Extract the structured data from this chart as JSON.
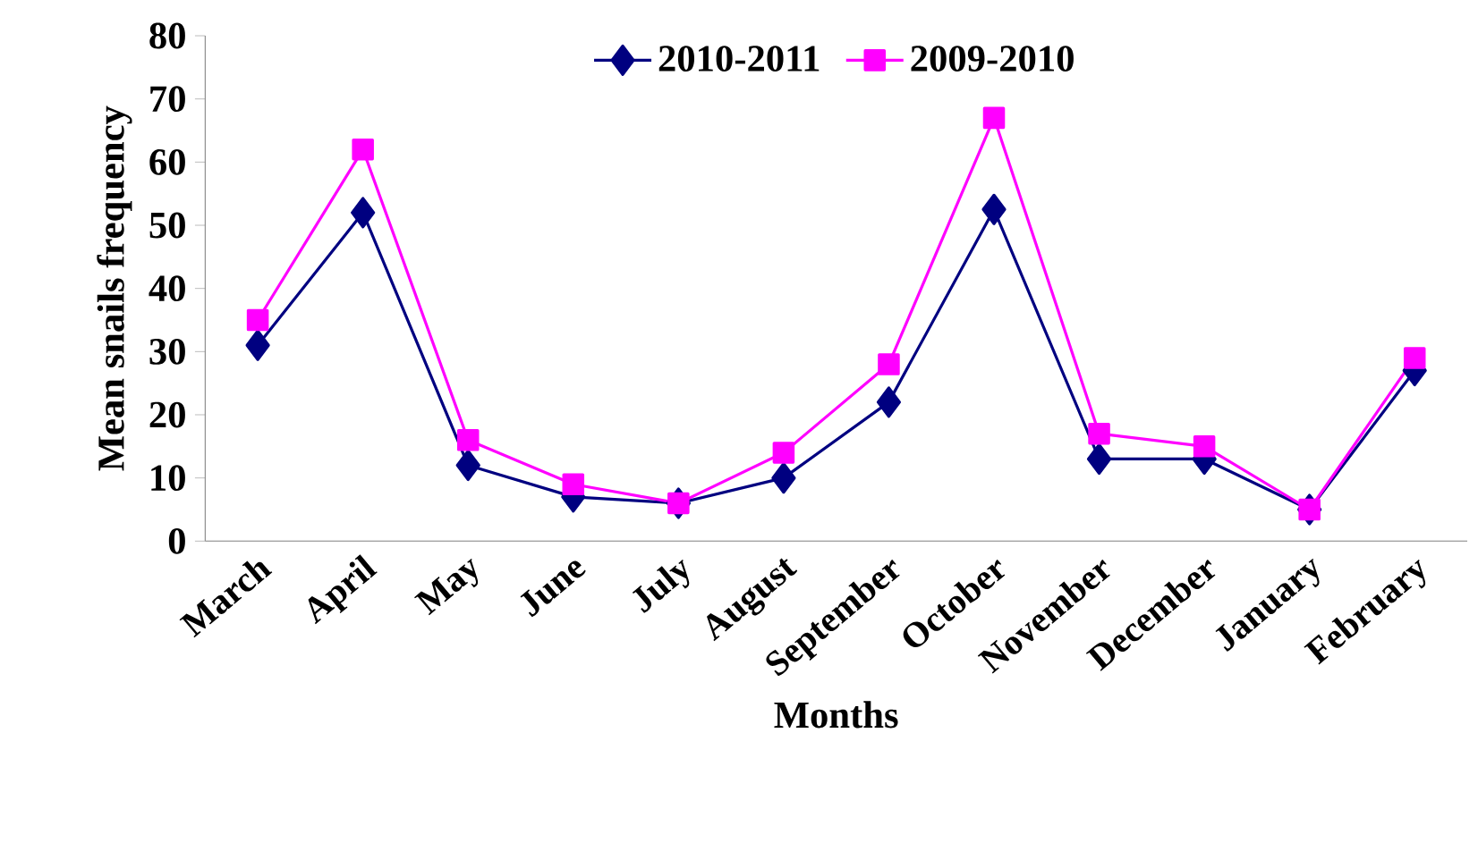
{
  "chart_data": {
    "type": "line",
    "xlabel": "Months",
    "ylabel": "Mean snails frequency",
    "categories": [
      "March",
      "April",
      "May",
      "June",
      "July",
      "August",
      "September",
      "October",
      "November",
      "December",
      "January",
      "February"
    ],
    "series": [
      {
        "name": "2010-2011",
        "color": "#000080",
        "marker": "diamond",
        "values": [
          31,
          52,
          12,
          7,
          6,
          10,
          22,
          52.5,
          13,
          13,
          5,
          27
        ]
      },
      {
        "name": "2009-2010",
        "color": "#ff00ff",
        "marker": "square",
        "values": [
          35,
          62,
          16,
          9,
          6,
          14,
          28,
          67,
          17,
          15,
          5,
          29
        ]
      }
    ],
    "ylim": [
      0,
      80
    ],
    "yticks": [
      0,
      10,
      20,
      30,
      40,
      50,
      60,
      70,
      80
    ],
    "legend": "top",
    "grid": false,
    "line_style": "solid"
  }
}
